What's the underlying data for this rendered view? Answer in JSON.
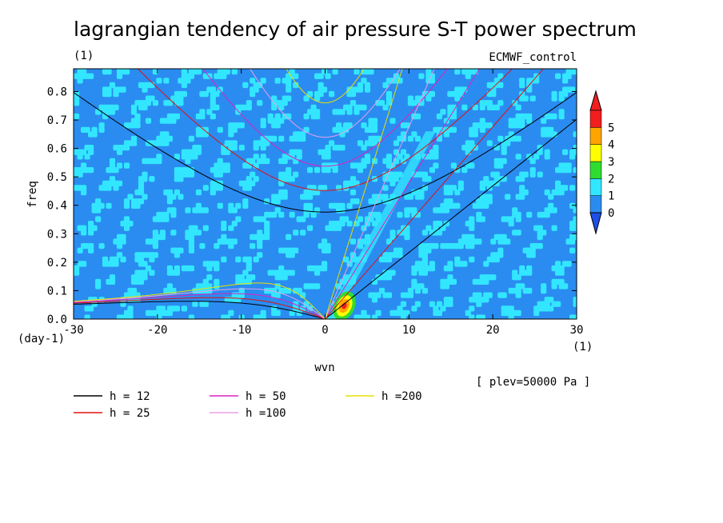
{
  "chart_data": {
    "type": "heatmap",
    "title": "lagrangian tendency of air pressure S-T power spectrum",
    "units_left": "(1)",
    "model_label": "ECMWF_control",
    "xlabel": "wvn",
    "ylabel": "freq",
    "x_unit": "(1)",
    "y_unit": "(day-1)",
    "annotation": "[ plev=50000 Pa ]",
    "xlim": [
      -30,
      30
    ],
    "ylim": [
      0,
      0.88
    ],
    "x_ticks": [
      -30,
      -20,
      -10,
      0,
      10,
      20,
      30
    ],
    "y_ticks": [
      0.0,
      0.1,
      0.2,
      0.3,
      0.4,
      0.5,
      0.6,
      0.7,
      0.8
    ],
    "y_tick_labels": [
      "0.0",
      "0.1",
      "0.2",
      "0.3",
      "0.4",
      "0.5",
      "0.6",
      "0.7",
      "0.8"
    ],
    "colorbar": {
      "levels": [
        0,
        1,
        2,
        3,
        4,
        5
      ],
      "colors": [
        "#2a8cf0",
        "#33e6ff",
        "#30dc30",
        "#ffff00",
        "#ffa500",
        "#f01e1e"
      ],
      "under_color": "#1f4fe6"
    },
    "field_peak": {
      "x": 2.0,
      "y": 0.035,
      "max_level": 5
    },
    "dispersion_curves": [
      {
        "label": "h = 12",
        "h": 12,
        "color": "#000000"
      },
      {
        "label": "h = 25",
        "h": 25,
        "color": "#e01010"
      },
      {
        "label": "h = 50",
        "h": 50,
        "color": "#e020c0"
      },
      {
        "label": "h =100",
        "h": 100,
        "color": "#e8a0e8"
      },
      {
        "label": "h =200",
        "h": 200,
        "color": "#e8e000"
      }
    ]
  }
}
